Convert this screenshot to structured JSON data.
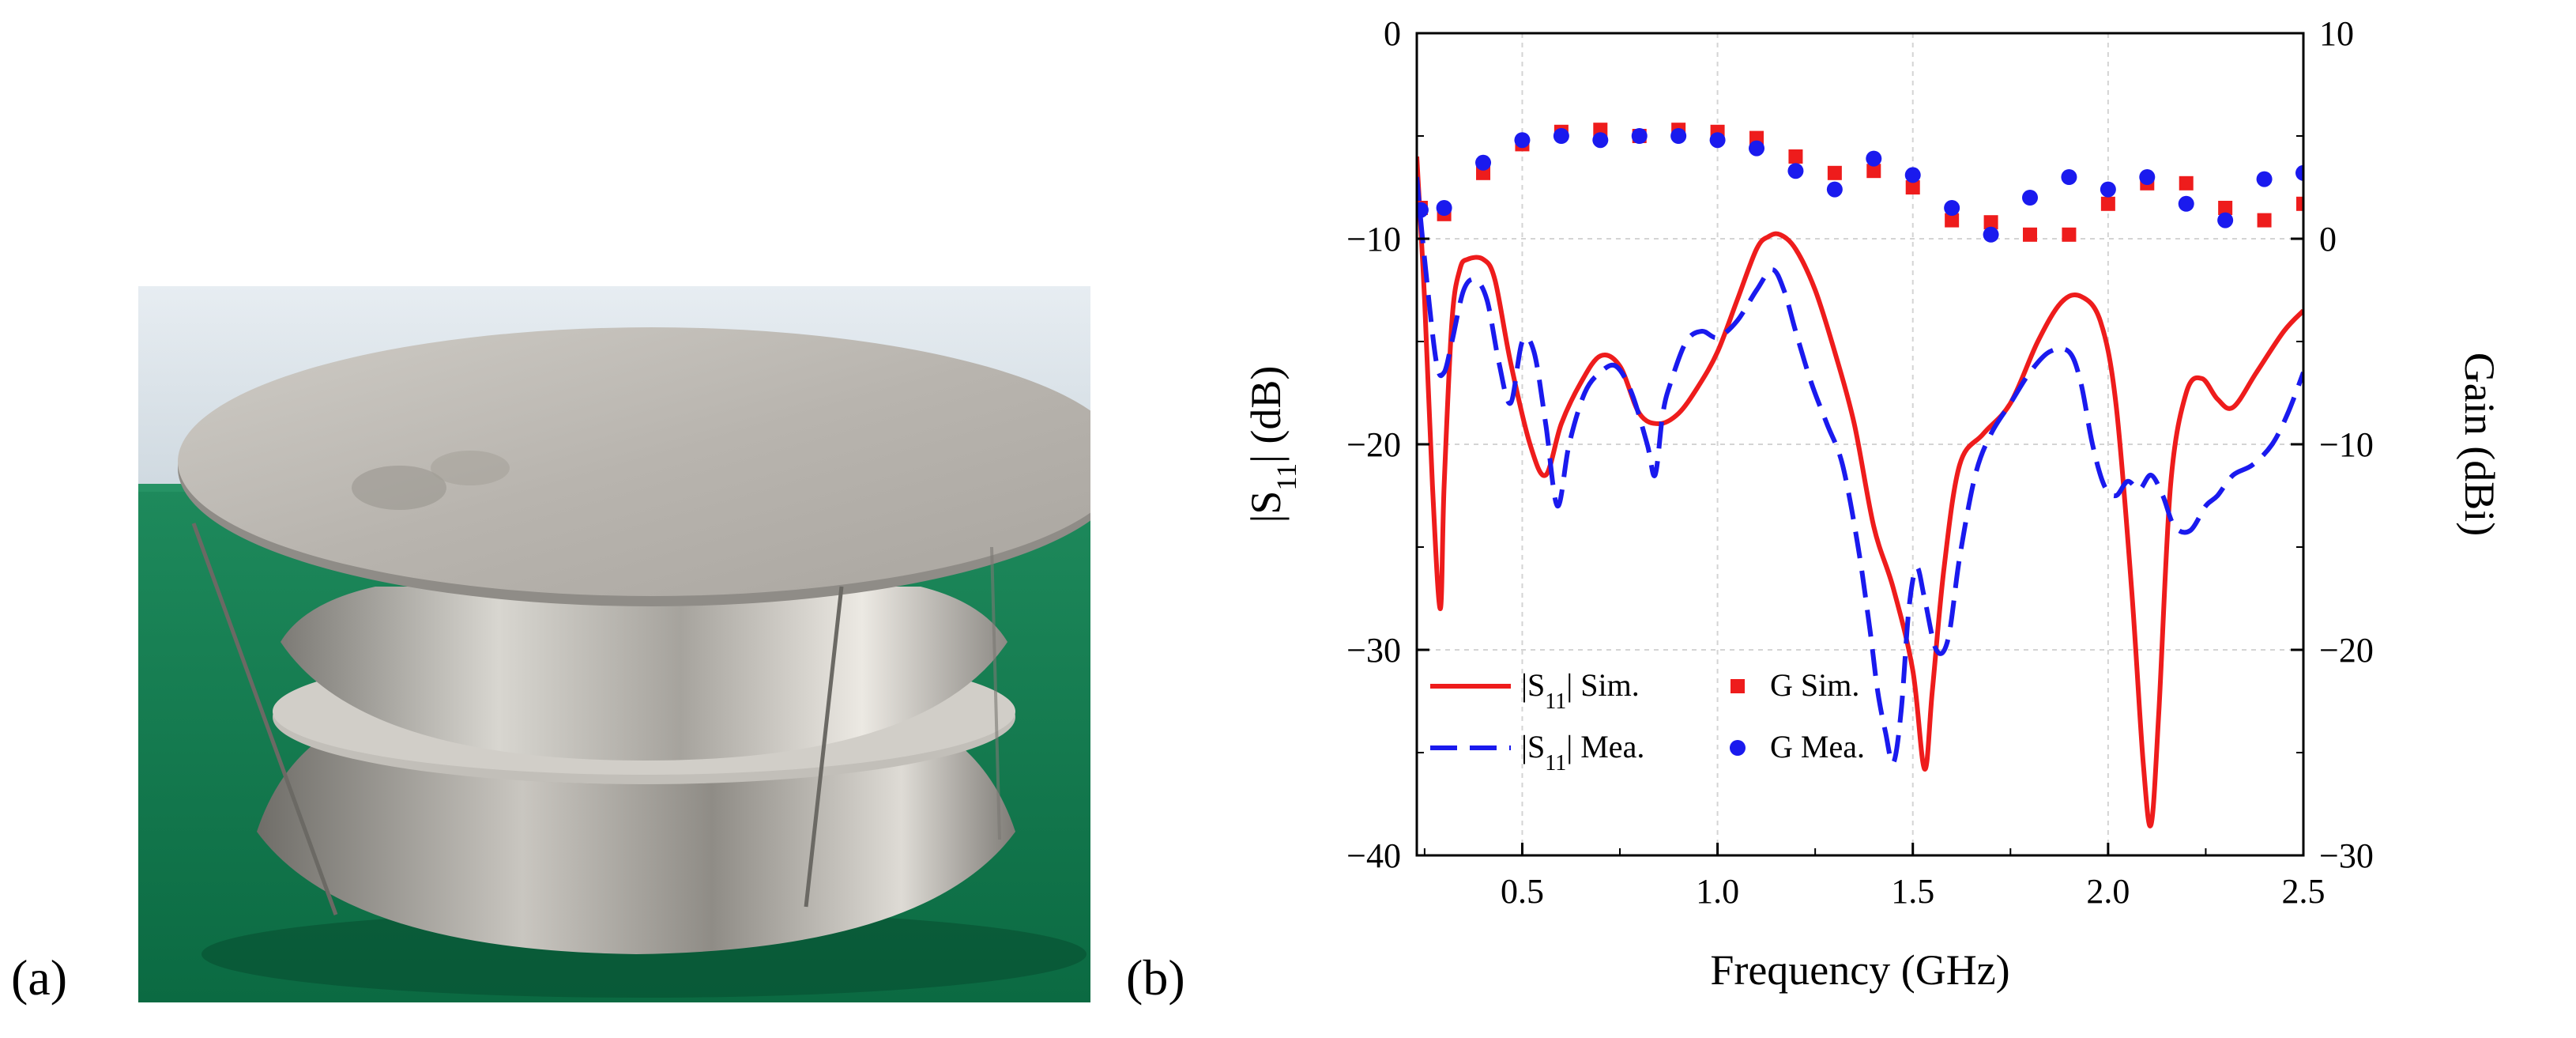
{
  "panels": {
    "a_label": "(a)",
    "b_label": "(b)"
  },
  "photo": {
    "subject": "antenna-prototype",
    "colors": {
      "wall": "#dfe6ec",
      "table": "#127a50",
      "metal": "#b9b6b0"
    }
  },
  "chart_data": {
    "type": "line",
    "xlabel": "Frequency (GHz)",
    "ylabel_left": "|S11| (dB)",
    "ylabel_right": "Gain (dBi)",
    "xlim": [
      0.23,
      2.5
    ],
    "ylim_left": [
      -40,
      0
    ],
    "ylim_right": [
      -30,
      10
    ],
    "x_ticks": [
      0.5,
      1.0,
      1.5,
      2.0,
      2.5
    ],
    "x_tick_labels": [
      "0.5",
      "1.0",
      "1.5",
      "2.0",
      "2.5"
    ],
    "y_left_ticks": [
      0,
      -10,
      -20,
      -30,
      -40
    ],
    "y_left_tick_labels": [
      "0",
      "−10",
      "−20",
      "−30",
      "−40"
    ],
    "y_right_ticks": [
      10,
      0,
      -10,
      -20,
      -30
    ],
    "y_right_tick_labels": [
      "10",
      "0",
      "−10",
      "−20",
      "−30"
    ],
    "grid": true,
    "legend_position": "bottom-left",
    "colors": {
      "sim": "#ee1c1c",
      "mea": "#1a1aee"
    },
    "legend": {
      "s11_sim": "|S11| Sim.",
      "s11_mea": "|S11| Mea.",
      "g_sim": "G Sim.",
      "g_mea": "G Mea."
    },
    "series": [
      {
        "name": "|S11| Sim.",
        "axis": "left",
        "style": "solid",
        "x": [
          0.23,
          0.25,
          0.27,
          0.29,
          0.3,
          0.32,
          0.34,
          0.36,
          0.4,
          0.43,
          0.47,
          0.52,
          0.56,
          0.6,
          0.65,
          0.7,
          0.75,
          0.8,
          0.85,
          0.9,
          0.95,
          1.0,
          1.05,
          1.1,
          1.13,
          1.16,
          1.2,
          1.25,
          1.3,
          1.35,
          1.4,
          1.45,
          1.5,
          1.53,
          1.55,
          1.58,
          1.62,
          1.68,
          1.75,
          1.82,
          1.88,
          1.93,
          1.98,
          2.02,
          2.06,
          2.09,
          2.11,
          2.13,
          2.16,
          2.2,
          2.24,
          2.28,
          2.32,
          2.38,
          2.45,
          2.5
        ],
        "y": [
          -6,
          -13,
          -22,
          -28,
          -22,
          -14,
          -11.5,
          -11,
          -11,
          -12,
          -16,
          -20,
          -21.5,
          -19,
          -17,
          -15.7,
          -16.2,
          -18.5,
          -19,
          -18.5,
          -17.2,
          -15.5,
          -13,
          -10.5,
          -9.9,
          -9.8,
          -10.5,
          -12.5,
          -15.5,
          -19,
          -24,
          -27,
          -31,
          -35.8,
          -32,
          -26,
          -21,
          -19.5,
          -18,
          -15,
          -13.1,
          -12.8,
          -14,
          -18,
          -27,
          -35.5,
          -38.5,
          -33,
          -22,
          -17.5,
          -16.8,
          -17.8,
          -18.2,
          -16.5,
          -14.5,
          -13.5
        ]
      },
      {
        "name": "|S11| Mea.",
        "axis": "left",
        "style": "dashed",
        "x": [
          0.23,
          0.25,
          0.28,
          0.3,
          0.32,
          0.35,
          0.38,
          0.41,
          0.44,
          0.47,
          0.5,
          0.53,
          0.56,
          0.59,
          0.62,
          0.66,
          0.7,
          0.74,
          0.78,
          0.82,
          0.84,
          0.86,
          0.88,
          0.92,
          0.96,
          1.0,
          1.05,
          1.1,
          1.14,
          1.17,
          1.2,
          1.24,
          1.28,
          1.32,
          1.36,
          1.39,
          1.41,
          1.43,
          1.45,
          1.47,
          1.49,
          1.51,
          1.53,
          1.56,
          1.59,
          1.62,
          1.66,
          1.7,
          1.75,
          1.8,
          1.85,
          1.9,
          1.93,
          1.96,
          1.99,
          2.02,
          2.05,
          2.08,
          2.11,
          2.14,
          2.17,
          2.21,
          2.25,
          2.28,
          2.32,
          2.37,
          2.42,
          2.46,
          2.5
        ],
        "y": [
          -7,
          -11,
          -16,
          -16.5,
          -15,
          -12.5,
          -12,
          -13,
          -16,
          -18,
          -15,
          -15.5,
          -19,
          -23,
          -20,
          -17.5,
          -16.5,
          -16.2,
          -17.5,
          -20,
          -21.5,
          -18.5,
          -17,
          -15,
          -14.5,
          -14.8,
          -14,
          -12.5,
          -11.5,
          -12.5,
          -14.5,
          -17,
          -19,
          -21,
          -25,
          -29,
          -32,
          -34,
          -35.5,
          -33,
          -28,
          -26,
          -27.5,
          -30,
          -29.5,
          -25.5,
          -21.5,
          -19.5,
          -18,
          -16.5,
          -15.5,
          -15.5,
          -17,
          -20,
          -22,
          -22.5,
          -21.8,
          -22.2,
          -21.5,
          -22.5,
          -24,
          -24.2,
          -23,
          -22.5,
          -21.5,
          -21,
          -20,
          -18.5,
          -16.5
        ]
      },
      {
        "name": "G Sim.",
        "axis": "right",
        "marker": "square",
        "x": [
          0.24,
          0.3,
          0.4,
          0.5,
          0.6,
          0.7,
          0.8,
          0.9,
          1.0,
          1.1,
          1.2,
          1.3,
          1.4,
          1.5,
          1.6,
          1.7,
          1.8,
          1.9,
          2.0,
          2.1,
          2.2,
          2.3,
          2.4,
          2.5
        ],
        "y": [
          1.5,
          1.2,
          3.2,
          4.6,
          5.2,
          5.3,
          5.0,
          5.3,
          5.2,
          4.9,
          4.0,
          3.2,
          3.3,
          2.5,
          0.9,
          0.8,
          0.2,
          0.2,
          1.7,
          2.7,
          2.7,
          1.5,
          0.9,
          1.7
        ]
      },
      {
        "name": "G Mea.",
        "axis": "right",
        "marker": "circle",
        "x": [
          0.24,
          0.3,
          0.4,
          0.5,
          0.6,
          0.7,
          0.8,
          0.9,
          1.0,
          1.1,
          1.2,
          1.3,
          1.4,
          1.5,
          1.6,
          1.7,
          1.8,
          1.9,
          2.0,
          2.1,
          2.2,
          2.3,
          2.4,
          2.5
        ],
        "y": [
          1.4,
          1.5,
          3.7,
          4.8,
          5.0,
          4.8,
          5.0,
          5.0,
          4.8,
          4.4,
          3.3,
          2.4,
          3.9,
          3.1,
          1.5,
          0.2,
          2.0,
          3.0,
          2.4,
          3.0,
          1.7,
          0.9,
          2.9,
          3.2
        ]
      }
    ]
  }
}
